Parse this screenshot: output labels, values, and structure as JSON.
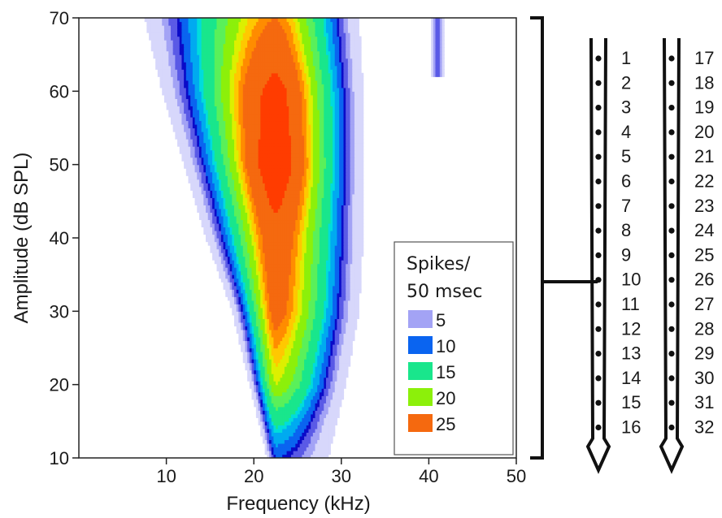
{
  "chart_data": {
    "type": "heatmap",
    "xlabel": "Frequency (kHz)",
    "ylabel": "Amplitude (dB SPL)",
    "xlim": [
      0,
      50
    ],
    "ylim": [
      10,
      70
    ],
    "xticks": [
      10,
      20,
      30,
      40,
      50
    ],
    "yticks": [
      10,
      20,
      30,
      40,
      50,
      60,
      70
    ],
    "grid": false,
    "legend": {
      "title_line1": "Spikes/",
      "title_line2": "50 msec",
      "placement": "bottom-right",
      "levels": [
        {
          "value": 5,
          "label": "5",
          "color": "#a3a3f5"
        },
        {
          "value": 10,
          "label": "10",
          "color": "#0a64f0"
        },
        {
          "value": 15,
          "label": "15",
          "color": "#19e68c"
        },
        {
          "value": 20,
          "label": "20",
          "color": "#8cf00a"
        },
        {
          "value": 25,
          "label": "25",
          "color": "#f5690f"
        }
      ]
    },
    "colormap": [
      {
        "value": 3,
        "color": "#d7d7fb"
      },
      {
        "value": 5,
        "color": "#a3a3f5"
      },
      {
        "value": 7,
        "color": "#5a5ae6"
      },
      {
        "value": 9,
        "color": "#0a0ac8"
      },
      {
        "value": 10,
        "color": "#0a64f0"
      },
      {
        "value": 12,
        "color": "#00aaf0"
      },
      {
        "value": 14,
        "color": "#00dcdc"
      },
      {
        "value": 15,
        "color": "#19e68c"
      },
      {
        "value": 18,
        "color": "#5af05a"
      },
      {
        "value": 20,
        "color": "#8cf00a"
      },
      {
        "value": 22,
        "color": "#dcf000"
      },
      {
        "value": 23,
        "color": "#ffc800"
      },
      {
        "value": 24,
        "color": "#ff8c00"
      },
      {
        "value": 25,
        "color": "#f5690f"
      },
      {
        "value": 28,
        "color": "#ff3c00"
      },
      {
        "value": 31,
        "color": "#dc0000"
      }
    ],
    "tuning_curve": {
      "amplitude": [
        10,
        20,
        30,
        40,
        50,
        60,
        70
      ],
      "outer_low_khz": [
        21.5,
        19.5,
        17.5,
        14.5,
        12.0,
        9.5,
        7.5
      ],
      "outer_high_khz": [
        28.5,
        30.5,
        32.0,
        32.5,
        32.5,
        32.5,
        32.0
      ],
      "best_frequency_khz": 22.5,
      "peak_spikes": [
        10,
        22,
        26,
        27,
        30,
        29,
        25
      ]
    },
    "secondary_patch": {
      "center_khz": 41,
      "amplitude_range": [
        62,
        70
      ],
      "spikes": 8
    }
  },
  "electrode": {
    "recording_site": "10",
    "shank1_channels": [
      "1",
      "2",
      "3",
      "4",
      "5",
      "6",
      "7",
      "8",
      "9",
      "10",
      "11",
      "12",
      "13",
      "14",
      "15",
      "16"
    ],
    "shank2_channels": [
      "17",
      "18",
      "19",
      "20",
      "21",
      "22",
      "23",
      "24",
      "25",
      "26",
      "27",
      "28",
      "29",
      "30",
      "31",
      "32"
    ]
  }
}
